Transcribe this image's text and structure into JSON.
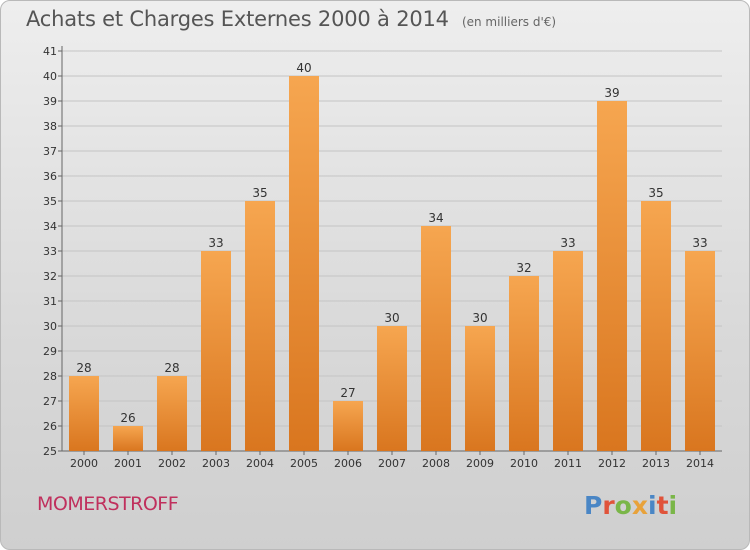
{
  "title": "Achats et Charges Externes 2000 à 2014",
  "subtitle": "(en milliers d'€)",
  "place": "MOMERSTROFF",
  "logo": {
    "letters": [
      {
        "ch": "P",
        "color": "#4a86c5"
      },
      {
        "ch": "r",
        "color": "#e0533a"
      },
      {
        "ch": "o",
        "color": "#7ab648"
      },
      {
        "ch": "x",
        "color": "#e8a23a"
      },
      {
        "ch": "i",
        "color": "#4a86c5"
      },
      {
        "ch": "t",
        "color": "#e0533a"
      },
      {
        "ch": "i",
        "color": "#7ab648"
      }
    ]
  },
  "colors": {
    "bar_light": "#f6a650",
    "bar_dark": "#d9761f",
    "grid": "#c4c4c4",
    "axis_text": "#333333"
  },
  "chart_data": {
    "type": "bar",
    "title": "Achats et Charges Externes 2000 à 2014",
    "subtitle": "(en milliers d'€)",
    "xlabel": "",
    "ylabel": "",
    "categories": [
      "2000",
      "2001",
      "2002",
      "2003",
      "2004",
      "2005",
      "2006",
      "2007",
      "2008",
      "2009",
      "2010",
      "2011",
      "2012",
      "2013",
      "2014"
    ],
    "values": [
      28,
      26,
      28,
      33,
      35,
      40,
      27,
      30,
      34,
      30,
      32,
      33,
      39,
      35,
      33
    ],
    "ylim": [
      25,
      41
    ],
    "yticks": [
      25,
      26,
      27,
      28,
      29,
      30,
      31,
      32,
      33,
      34,
      35,
      36,
      37,
      38,
      39,
      40,
      41
    ],
    "grid": true,
    "data_labels": true
  }
}
